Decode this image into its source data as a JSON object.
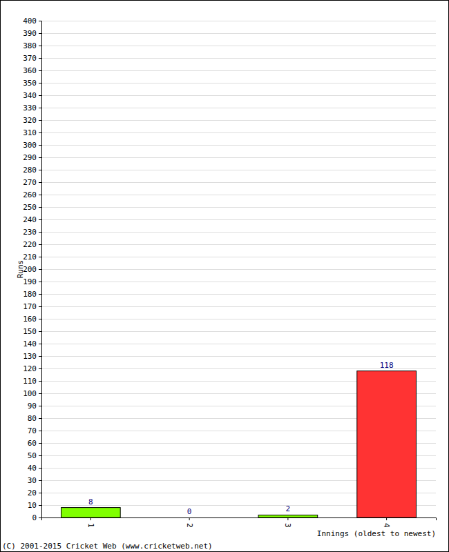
{
  "chart_data": {
    "type": "bar",
    "y_label": "Runs",
    "x_label": "Innings (oldest to newest)",
    "annotations": [
      "(C) 2001-2015 Cricket Web (www.cricketweb.net)"
    ],
    "categories": [
      "1",
      "2",
      "3",
      "4"
    ],
    "values": [
      8,
      0,
      2,
      118
    ],
    "colors": [
      "#80ff00",
      "#80ff00",
      "#80ff00",
      "#ff3333"
    ],
    "ylim": [
      0,
      400
    ],
    "yticks": [
      0,
      10,
      20,
      30,
      40,
      50,
      60,
      70,
      80,
      90,
      100,
      110,
      120,
      130,
      140,
      150,
      160,
      170,
      180,
      190,
      200,
      210,
      220,
      230,
      240,
      250,
      260,
      270,
      280,
      290,
      300,
      310,
      320,
      330,
      340,
      350,
      360,
      370,
      380,
      390,
      400
    ],
    "grid": true,
    "data_labels": true
  }
}
